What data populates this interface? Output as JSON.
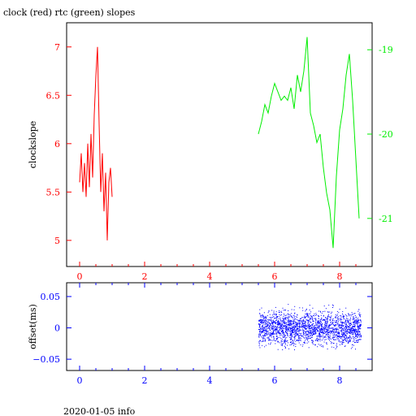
{
  "title": "clock (red) rtc (green) slopes",
  "footer": "2020-01-05 info",
  "colors": {
    "clock": "#ff0000",
    "rtc": "#00ee00",
    "offset": "#0000ff",
    "axis": "#000000"
  },
  "chart_data": [
    {
      "type": "line",
      "xlim": [
        -0.4,
        9.0
      ],
      "ylabel": "clockslope",
      "y_left": {
        "lim": [
          4.73,
          7.25
        ],
        "ticks": [
          "5",
          "5.5",
          "6",
          "6.5",
          "7"
        ],
        "tick_values": [
          5,
          5.5,
          6,
          6.5,
          7
        ],
        "color": "#ff0000"
      },
      "y_right": {
        "lim": [
          -21.57,
          -18.68
        ],
        "ticks": [
          "-19",
          "-20",
          "-21"
        ],
        "tick_values": [
          -19,
          -20,
          -21
        ],
        "color": "#00ee00"
      },
      "x_ticks": [
        "0",
        "2",
        "4",
        "6",
        "8"
      ],
      "x_tick_values": [
        0,
        2,
        4,
        6,
        8
      ],
      "x_tick_color": "#ff0000",
      "series": [
        {
          "axis": "left",
          "color": "#ff0000",
          "x": [
            0.0,
            0.05,
            0.1,
            0.15,
            0.2,
            0.25,
            0.3,
            0.35,
            0.4,
            0.45,
            0.5,
            0.55,
            0.6,
            0.65,
            0.7,
            0.75,
            0.8,
            0.85,
            0.9,
            0.95,
            1.0
          ],
          "y": [
            5.6,
            5.9,
            5.5,
            5.8,
            5.45,
            6.0,
            5.55,
            6.1,
            5.65,
            6.3,
            6.7,
            7.0,
            6.2,
            5.5,
            5.9,
            5.3,
            5.7,
            5.0,
            5.6,
            5.75,
            5.45
          ]
        },
        {
          "axis": "right",
          "color": "#00ee00",
          "x": [
            5.5,
            5.6,
            5.7,
            5.8,
            5.9,
            6.0,
            6.1,
            6.2,
            6.3,
            6.4,
            6.5,
            6.6,
            6.7,
            6.8,
            6.9,
            7.0,
            7.1,
            7.2,
            7.3,
            7.4,
            7.5,
            7.6,
            7.7,
            7.8,
            7.9,
            8.0,
            8.1,
            8.2,
            8.3,
            8.4,
            8.5,
            8.6
          ],
          "y": [
            -20.0,
            -19.85,
            -19.65,
            -19.75,
            -19.55,
            -19.4,
            -19.5,
            -19.6,
            -19.55,
            -19.6,
            -19.45,
            -19.7,
            -19.3,
            -19.5,
            -19.25,
            -18.85,
            -19.75,
            -19.9,
            -20.1,
            -20.0,
            -20.4,
            -20.7,
            -20.9,
            -21.35,
            -20.5,
            -19.95,
            -19.7,
            -19.3,
            -19.05,
            -19.6,
            -20.3,
            -21.0
          ]
        }
      ]
    },
    {
      "type": "scatter",
      "xlim": [
        -0.4,
        9.0
      ],
      "ylim": [
        -0.068,
        0.072
      ],
      "ylabel": "offset(ms)",
      "y_ticks": [
        "0.05",
        "0",
        "−0.05"
      ],
      "y_tick_values": [
        0.05,
        0,
        -0.05
      ],
      "x_ticks": [
        "0",
        "2",
        "4",
        "6",
        "8"
      ],
      "x_tick_values": [
        0,
        2,
        4,
        6,
        8
      ],
      "tick_color": "#0000ff",
      "series": [
        {
          "color": "#0000ff",
          "x_range": [
            5.5,
            8.65
          ],
          "center": 0.0,
          "spread": 0.045
        }
      ]
    }
  ]
}
